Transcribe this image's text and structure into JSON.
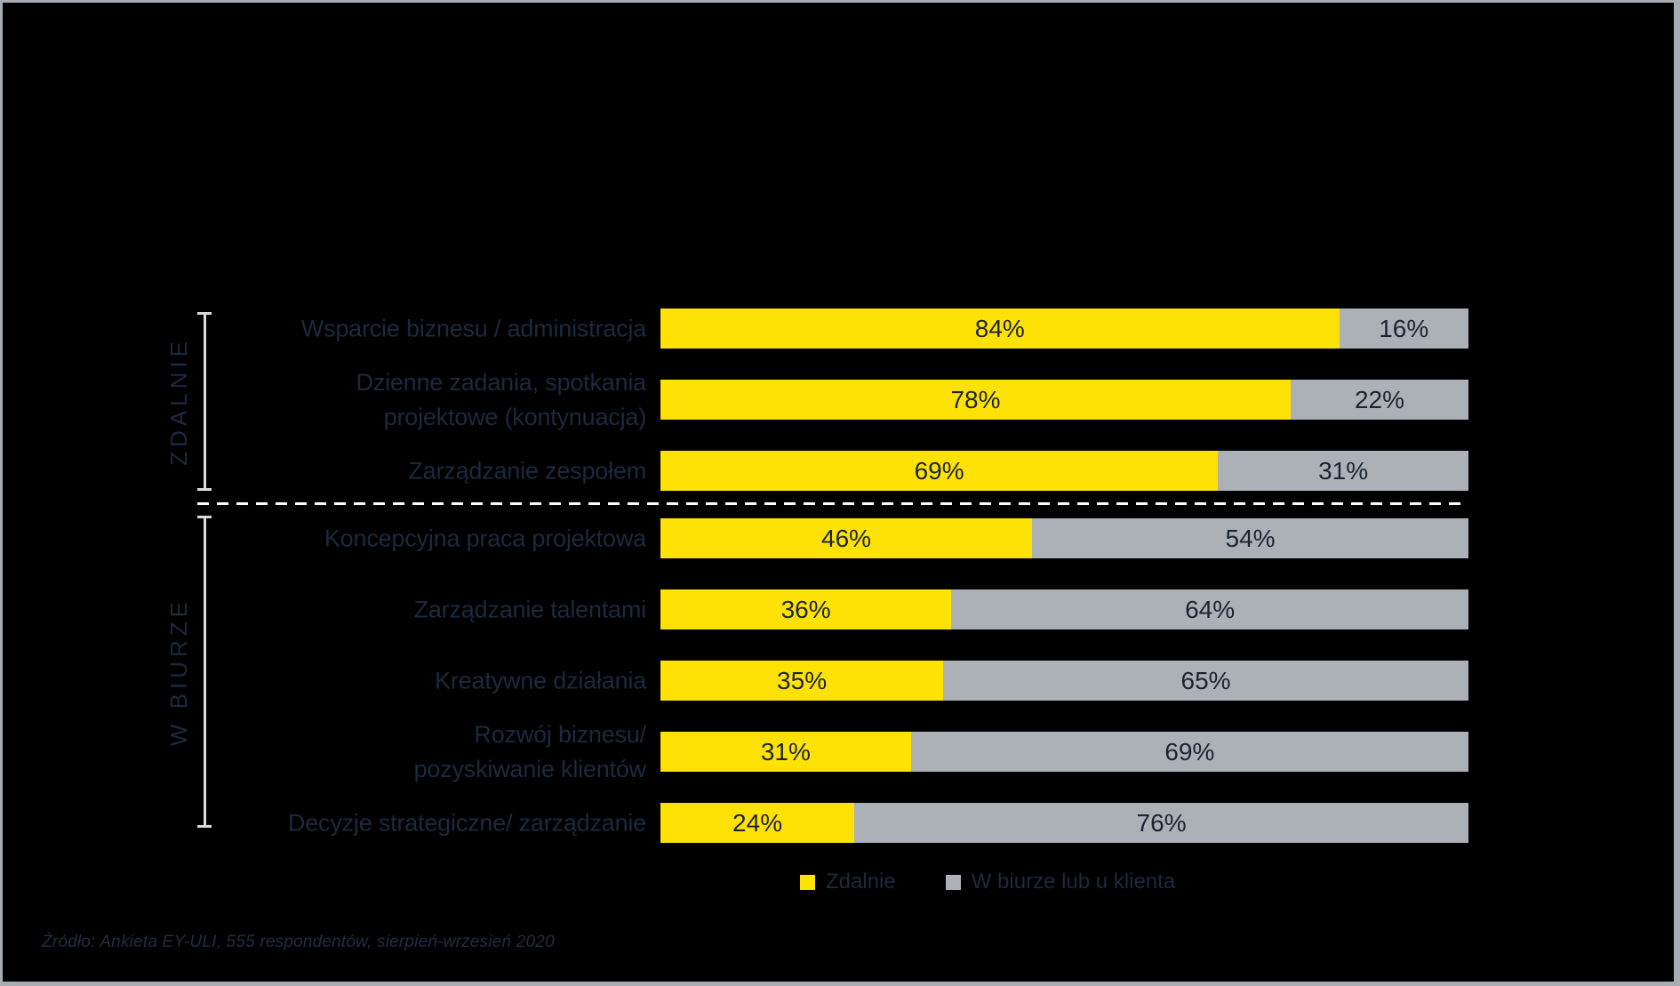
{
  "frame": {
    "background": "#000000",
    "border_color": "#A8ADB3"
  },
  "chart_data": {
    "type": "bar",
    "stacked": true,
    "orientation": "horizontal",
    "value_format": "{v}%",
    "xlim": [
      0,
      100
    ],
    "grid": false,
    "legend_position": "bottom",
    "categories": [
      "Wsparcie biznesu / administracja",
      "Dzienne zadania, spotkania projektowe (kontynuacja)",
      "Zarządzanie zespołem",
      "Koncepcyjna praca projektowa",
      "Zarządzanie talentami",
      "Kreatywne działania",
      "Rozwój biznesu/ pozyskiwanie klientów",
      "Decyzje strategiczne/ zarządzanie"
    ],
    "series": [
      {
        "name": "Zdalnie",
        "color": "#FFE205",
        "values": [
          84,
          78,
          69,
          46,
          36,
          35,
          31,
          24
        ]
      },
      {
        "name": "W biurze lub u klienta",
        "color": "#ACB1B7",
        "values": [
          16,
          22,
          31,
          54,
          64,
          65,
          69,
          76
        ]
      }
    ],
    "rows": [
      {
        "lines": [
          "Wsparcie biznesu / administracja"
        ],
        "values": [
          84,
          16
        ]
      },
      {
        "lines": [
          "Dzienne zadania, spotkania",
          "projektowe (kontynuacja)"
        ],
        "values": [
          78,
          22
        ]
      },
      {
        "lines": [
          "Zarządzanie zespołem"
        ],
        "values": [
          69,
          31
        ]
      },
      {
        "lines": [
          "Koncepcyjna praca projektowa"
        ],
        "values": [
          46,
          54
        ]
      },
      {
        "lines": [
          "Zarządzanie talentami"
        ],
        "values": [
          36,
          64
        ]
      },
      {
        "lines": [
          "Kreatywne działania"
        ],
        "values": [
          35,
          65
        ]
      },
      {
        "lines": [
          "Rozwój biznesu/",
          "pozyskiwanie klientów"
        ],
        "values": [
          31,
          69
        ]
      },
      {
        "lines": [
          "Decyzje strategiczne/ zarządzanie"
        ],
        "values": [
          24,
          76
        ]
      }
    ],
    "row_groups": [
      {
        "label": "ZDALNIE",
        "row_indexes": [
          0,
          1,
          2
        ]
      },
      {
        "label": "W BIURZE",
        "row_indexes": [
          3,
          4,
          5,
          6,
          7
        ]
      }
    ],
    "separator": {
      "style": "dashed",
      "color": "#FFFFFF"
    }
  },
  "legend": {
    "items": [
      {
        "label": "Zdalnie",
        "color": "#FFE205"
      },
      {
        "label": "W biurze lub u klienta",
        "color": "#ACB1B7"
      }
    ]
  },
  "source_note": "Źródło: Ankieta EY-ULI, 555 respondentów, sierpień-wrzesień 2020",
  "text_color": "#1C2A3E"
}
